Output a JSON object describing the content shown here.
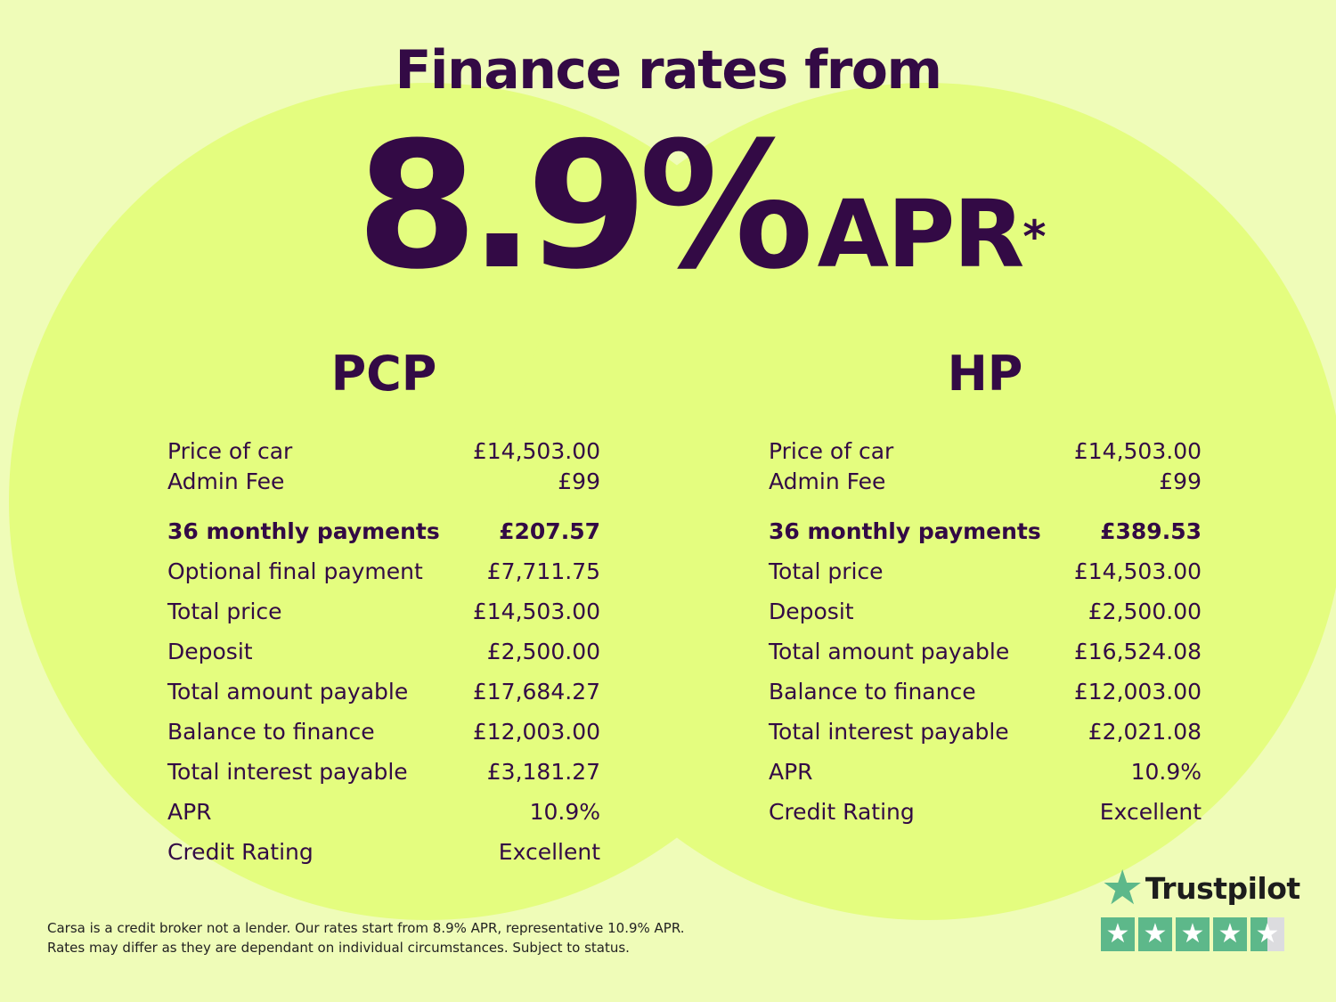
{
  "headline": "Finance rates from",
  "rate": {
    "value": "8.9%",
    "label": "APR",
    "marker": "*"
  },
  "colors": {
    "background": "#effcb8",
    "circles": "#e4fd7f",
    "text": "#330a45",
    "trustpilot_green": "#5db88a"
  },
  "pcp": {
    "title": "PCP",
    "rows": [
      {
        "label": "Price of car",
        "value": "£14,503.00"
      },
      {
        "label": "Admin Fee",
        "value": "£99"
      },
      {
        "label": "36 monthly payments",
        "value": "£207.57",
        "bold": true
      },
      {
        "label": "Optional final payment",
        "value": "£7,711.75"
      },
      {
        "label": "Total price",
        "value": "£14,503.00"
      },
      {
        "label": "Deposit",
        "value": "£2,500.00"
      },
      {
        "label": "Total amount payable",
        "value": "£17,684.27"
      },
      {
        "label": "Balance to finance",
        "value": "£12,003.00"
      },
      {
        "label": "Total interest payable",
        "value": "£3,181.27"
      },
      {
        "label": "APR",
        "value": "10.9%"
      },
      {
        "label": "Credit Rating",
        "value": "Excellent"
      }
    ]
  },
  "hp": {
    "title": "HP",
    "rows": [
      {
        "label": "Price of car",
        "value": "£14,503.00"
      },
      {
        "label": "Admin Fee",
        "value": "£99"
      },
      {
        "label": "36 monthly payments",
        "value": "£389.53",
        "bold": true
      },
      {
        "label": "Total price",
        "value": "£14,503.00"
      },
      {
        "label": "Deposit",
        "value": "£2,500.00"
      },
      {
        "label": "Total amount payable",
        "value": "£16,524.08"
      },
      {
        "label": "Balance to finance",
        "value": "£12,003.00"
      },
      {
        "label": "Total interest payable",
        "value": "£2,021.08"
      },
      {
        "label": "APR",
        "value": "10.9%"
      },
      {
        "label": "Credit Rating",
        "value": "Excellent"
      }
    ]
  },
  "disclaimer": {
    "line1": "Carsa is a credit broker not a lender. Our rates start from 8.9% APR, representative 10.9% APR.",
    "line2": "Rates may differ as they are dependant on individual circumstances. Subject to status."
  },
  "trustpilot": {
    "name": "Trustpilot",
    "rating": 4.5,
    "max": 5
  }
}
